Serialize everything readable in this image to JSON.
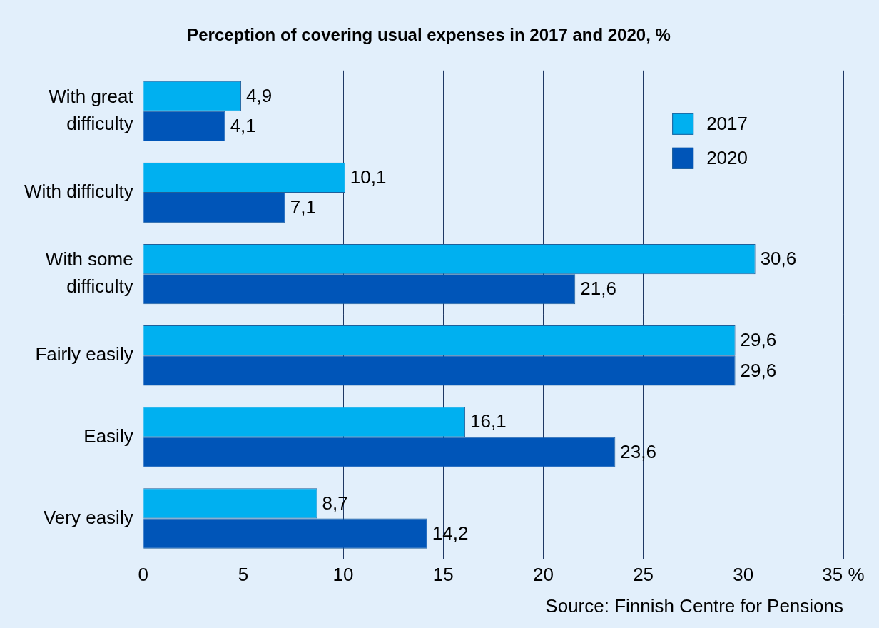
{
  "chart_data": {
    "type": "bar",
    "title": "Perception of covering usual expenses in 2017 and 2020, %",
    "source": "Source: Finnish Centre for Pensions",
    "orientation": "horizontal",
    "categories": [
      "With great difficulty",
      "With difficulty",
      "With some difficulty",
      "Fairly easily",
      "Easily",
      "Very easily"
    ],
    "series": [
      {
        "name": "2017",
        "color": "#00b0f0",
        "values": [
          4.9,
          10.1,
          30.6,
          29.6,
          16.1,
          8.7
        ],
        "value_labels": [
          "4,9",
          "10,1",
          "30,6",
          "29,6",
          "16,1",
          "8,7"
        ]
      },
      {
        "name": "2020",
        "color": "#0055b8",
        "values": [
          4.1,
          7.1,
          21.6,
          29.6,
          23.6,
          14.2
        ],
        "value_labels": [
          "4,1",
          "7,1",
          "21,6",
          "29,6",
          "23,6",
          "14,2"
        ]
      }
    ],
    "xlim": [
      0,
      35
    ],
    "xticks": [
      0,
      5,
      10,
      15,
      20,
      25,
      30,
      {
        "value": 35,
        "label": "35 %"
      }
    ],
    "grid": "x",
    "legend": "upper right",
    "data_labels": true
  }
}
